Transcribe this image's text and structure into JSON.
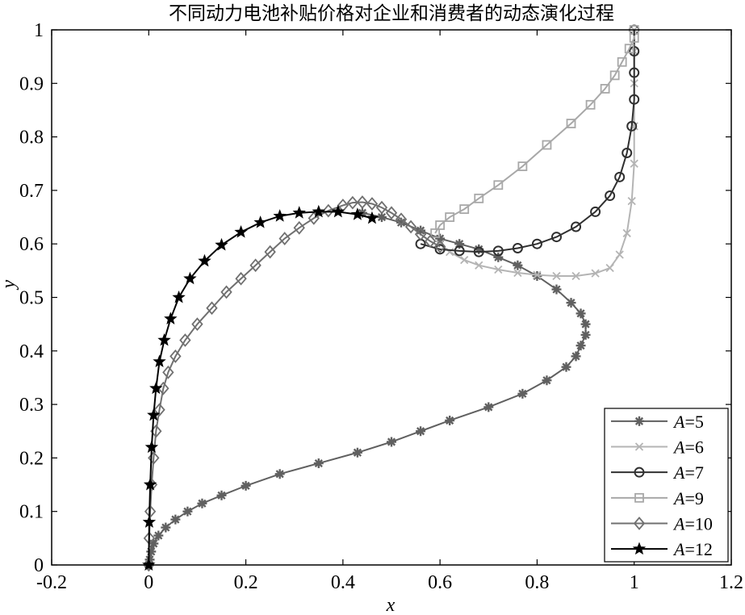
{
  "chart_data": {
    "type": "line",
    "title": "不同动力电池补贴价格对企业和消费者的动态演化过程",
    "xlabel": "x",
    "ylabel": "y",
    "xlim": [
      -0.2,
      1.2
    ],
    "ylim": [
      0,
      1
    ],
    "xticks": [
      "-0.2",
      "0",
      "0.2",
      "0.4",
      "0.6",
      "0.8",
      "1",
      "1.2"
    ],
    "yticks": [
      "0",
      "0.1",
      "0.2",
      "0.3",
      "0.4",
      "0.5",
      "0.6",
      "0.7",
      "0.8",
      "0.9",
      "1"
    ],
    "grid": false,
    "legend_position": "bottom-right",
    "series": [
      {
        "name": "A=5",
        "label_var": "A",
        "label_val": "=5",
        "marker": "asterisk",
        "color": "#606060",
        "x": [
          0,
          0.002,
          0.005,
          0.01,
          0.02,
          0.035,
          0.055,
          0.08,
          0.11,
          0.15,
          0.2,
          0.27,
          0.35,
          0.43,
          0.5,
          0.56,
          0.62,
          0.7,
          0.77,
          0.82,
          0.86,
          0.88,
          0.89,
          0.9,
          0.9,
          0.89,
          0.87,
          0.84,
          0.8,
          0.76,
          0.72,
          0.68,
          0.64,
          0.6,
          0.56,
          0.52,
          0.48,
          0.44
        ],
        "y": [
          0,
          0.01,
          0.025,
          0.04,
          0.055,
          0.07,
          0.085,
          0.1,
          0.115,
          0.13,
          0.148,
          0.17,
          0.19,
          0.21,
          0.23,
          0.25,
          0.27,
          0.295,
          0.32,
          0.345,
          0.37,
          0.39,
          0.41,
          0.43,
          0.45,
          0.47,
          0.49,
          0.515,
          0.54,
          0.56,
          0.575,
          0.59,
          0.6,
          0.61,
          0.625,
          0.64,
          0.65,
          0.658
        ]
      },
      {
        "name": "A=6",
        "label_var": "A",
        "label_val": "=6",
        "marker": "cross",
        "color": "#b4b4b4",
        "x": [
          0.6,
          0.62,
          0.65,
          0.68,
          0.72,
          0.76,
          0.8,
          0.84,
          0.88,
          0.92,
          0.95,
          0.97,
          0.985,
          0.995,
          1,
          1,
          1,
          1,
          1
        ],
        "y": [
          0.6,
          0.585,
          0.57,
          0.56,
          0.552,
          0.546,
          0.542,
          0.54,
          0.54,
          0.545,
          0.555,
          0.58,
          0.62,
          0.68,
          0.75,
          0.82,
          0.9,
          0.96,
          1
        ]
      },
      {
        "name": "A=7",
        "label_var": "A",
        "label_val": "=7",
        "marker": "circle",
        "color": "#303030",
        "x": [
          0.56,
          0.6,
          0.64,
          0.68,
          0.72,
          0.76,
          0.8,
          0.84,
          0.88,
          0.92,
          0.95,
          0.97,
          0.985,
          0.995,
          1,
          1,
          1,
          1
        ],
        "y": [
          0.6,
          0.59,
          0.587,
          0.585,
          0.587,
          0.592,
          0.6,
          0.613,
          0.632,
          0.66,
          0.69,
          0.725,
          0.77,
          0.82,
          0.87,
          0.92,
          0.96,
          1
        ]
      },
      {
        "name": "A=9",
        "label_var": "A",
        "label_val": "=9",
        "marker": "square",
        "color": "#a8a8a8",
        "x": [
          0.59,
          0.6,
          0.62,
          0.65,
          0.68,
          0.72,
          0.77,
          0.82,
          0.87,
          0.91,
          0.94,
          0.96,
          0.975,
          0.99,
          1,
          1
        ],
        "y": [
          0.62,
          0.635,
          0.65,
          0.665,
          0.685,
          0.71,
          0.745,
          0.785,
          0.825,
          0.86,
          0.89,
          0.915,
          0.94,
          0.965,
          0.985,
          1
        ]
      },
      {
        "name": "A=10",
        "label_var": "A",
        "label_val": "=10",
        "marker": "diamond",
        "color": "#707070",
        "x": [
          0,
          0.001,
          0.003,
          0.006,
          0.01,
          0.015,
          0.022,
          0.03,
          0.04,
          0.055,
          0.075,
          0.1,
          0.13,
          0.16,
          0.19,
          0.22,
          0.25,
          0.28,
          0.31,
          0.34,
          0.37,
          0.4,
          0.42,
          0.44,
          0.46,
          0.48,
          0.5,
          0.52,
          0.54,
          0.56,
          0.58,
          0.6
        ],
        "y": [
          0,
          0.05,
          0.1,
          0.15,
          0.2,
          0.25,
          0.29,
          0.33,
          0.36,
          0.39,
          0.42,
          0.45,
          0.48,
          0.51,
          0.535,
          0.56,
          0.585,
          0.61,
          0.63,
          0.648,
          0.662,
          0.672,
          0.677,
          0.678,
          0.675,
          0.668,
          0.658,
          0.646,
          0.632,
          0.618,
          0.605,
          0.595
        ]
      },
      {
        "name": "A=12",
        "label_var": "A",
        "label_val": "=12",
        "marker": "star",
        "color": "#000000",
        "x": [
          0,
          0.001,
          0.003,
          0.006,
          0.01,
          0.015,
          0.022,
          0.032,
          0.045,
          0.062,
          0.085,
          0.115,
          0.15,
          0.19,
          0.23,
          0.27,
          0.31,
          0.35,
          0.39,
          0.43,
          0.46
        ],
        "y": [
          0,
          0.08,
          0.15,
          0.22,
          0.28,
          0.33,
          0.38,
          0.42,
          0.46,
          0.5,
          0.535,
          0.568,
          0.598,
          0.622,
          0.64,
          0.652,
          0.658,
          0.66,
          0.66,
          0.655,
          0.648
        ]
      }
    ]
  }
}
